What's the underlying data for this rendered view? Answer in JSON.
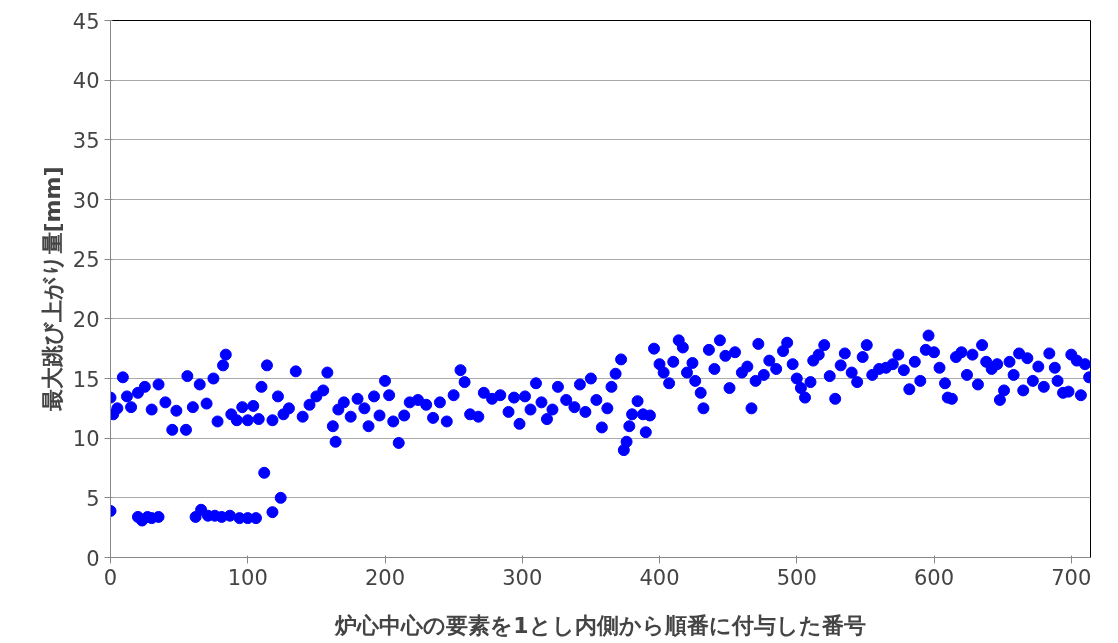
{
  "chart_data": {
    "type": "scatter",
    "xlabel": "炉心中心の要素を1とし内側から順番に付与した番号",
    "ylabel": "最大跳び上がり量[mm]",
    "xlim": [
      0,
      714
    ],
    "ylim": [
      0,
      45
    ],
    "xticks": [
      0,
      100,
      200,
      300,
      400,
      500,
      600,
      700
    ],
    "yticks": [
      0,
      5,
      10,
      15,
      20,
      25,
      30,
      35,
      40,
      45
    ],
    "grid": "y",
    "marker": "circle",
    "series": [
      {
        "color": "#0000ff",
        "x": [
          0,
          20,
          23,
          27,
          30,
          35,
          62,
          66,
          71,
          76,
          81,
          87,
          94,
          100,
          106,
          112,
          118,
          124,
          0,
          2,
          5,
          9,
          12,
          15,
          20,
          25,
          30,
          35,
          40,
          45,
          48,
          55,
          56,
          60,
          65,
          70,
          75,
          78,
          82,
          84,
          88,
          92,
          96,
          100,
          104,
          108,
          110,
          114,
          118,
          122,
          126,
          130,
          135,
          140,
          145,
          150,
          155,
          158,
          162,
          164,
          166,
          170,
          175,
          180,
          185,
          188,
          192,
          196,
          200,
          203,
          206,
          210,
          214,
          218,
          224,
          230,
          235,
          240,
          245,
          250,
          255,
          258,
          262,
          268,
          272,
          278,
          284,
          290,
          294,
          298,
          302,
          306,
          310,
          314,
          318,
          322,
          326,
          332,
          338,
          342,
          346,
          350,
          354,
          358,
          362,
          365,
          368,
          372,
          374,
          376,
          378,
          380,
          384,
          388,
          390,
          393,
          396,
          400,
          403,
          407,
          410,
          414,
          417,
          420,
          424,
          426,
          430,
          432,
          436,
          440,
          444,
          448,
          451,
          455,
          460,
          464,
          467,
          470,
          472,
          476,
          480,
          485,
          490,
          493,
          497,
          500,
          503,
          506,
          510,
          512,
          516,
          520,
          524,
          528,
          532,
          535,
          540,
          544,
          548,
          551,
          555,
          560,
          565,
          570,
          574,
          578,
          582,
          586,
          590,
          594,
          596,
          600,
          604,
          608,
          610,
          613,
          616,
          620,
          624,
          628,
          632,
          635,
          638,
          642,
          646,
          648,
          651,
          655,
          658,
          662,
          665,
          668,
          672,
          676,
          680,
          684,
          688,
          690,
          694,
          698,
          700,
          704,
          707,
          710,
          713
        ],
        "values": [
          3.9,
          3.4,
          3.1,
          3.4,
          3.3,
          3.4,
          3.4,
          4.0,
          3.5,
          3.5,
          3.4,
          3.5,
          3.3,
          3.3,
          3.3,
          7.1,
          3.8,
          5.0,
          13.4,
          12.0,
          12.5,
          15.1,
          13.5,
          12.6,
          13.8,
          14.3,
          12.4,
          14.5,
          13.0,
          10.7,
          12.3,
          10.7,
          15.2,
          12.6,
          14.5,
          12.9,
          15.0,
          11.4,
          16.1,
          17.0,
          12.0,
          11.5,
          12.6,
          11.5,
          12.7,
          11.6,
          14.3,
          16.1,
          11.5,
          13.5,
          12.0,
          12.5,
          15.6,
          11.8,
          12.8,
          13.5,
          14.0,
          15.5,
          11.0,
          9.7,
          12.4,
          13.0,
          11.8,
          13.3,
          12.5,
          11.0,
          13.5,
          11.9,
          14.8,
          13.6,
          11.4,
          9.6,
          11.9,
          13.0,
          13.2,
          12.8,
          11.7,
          13.0,
          11.4,
          13.6,
          15.7,
          14.7,
          12.0,
          11.8,
          13.8,
          13.3,
          13.6,
          12.2,
          13.4,
          11.2,
          13.5,
          12.4,
          14.6,
          13.0,
          11.6,
          12.4,
          14.3,
          13.2,
          12.6,
          14.5,
          12.2,
          15.0,
          13.2,
          10.9,
          12.5,
          14.3,
          15.4,
          16.6,
          9.0,
          9.7,
          11.0,
          12.0,
          13.1,
          12.0,
          10.5,
          11.9,
          17.5,
          16.2,
          15.5,
          14.6,
          16.4,
          18.2,
          17.6,
          15.5,
          16.3,
          14.8,
          13.8,
          12.5,
          17.4,
          15.8,
          18.2,
          16.9,
          14.2,
          17.2,
          15.5,
          16.0,
          12.5,
          14.8,
          17.9,
          15.3,
          16.5,
          15.8,
          17.3,
          18.0,
          16.2,
          15.0,
          14.2,
          13.4,
          14.7,
          16.5,
          17.0,
          17.8,
          15.2,
          13.3,
          16.1,
          17.1,
          15.5,
          14.7,
          16.8,
          17.8,
          15.3,
          15.8,
          15.9,
          16.2,
          17.0,
          15.7,
          14.1,
          16.4,
          14.8,
          17.4,
          18.6,
          17.2,
          15.9,
          14.6,
          13.4,
          13.3,
          16.8,
          17.2,
          15.3,
          17.0,
          14.5,
          17.8,
          16.4,
          15.8,
          16.2,
          13.2,
          14.0,
          16.4,
          15.3,
          17.1,
          14.0,
          16.7,
          14.8,
          16.0,
          14.3,
          17.1,
          15.9,
          14.8,
          13.8,
          13.9,
          17.0,
          16.5,
          13.6,
          16.2,
          15.1
        ]
      }
    ]
  }
}
